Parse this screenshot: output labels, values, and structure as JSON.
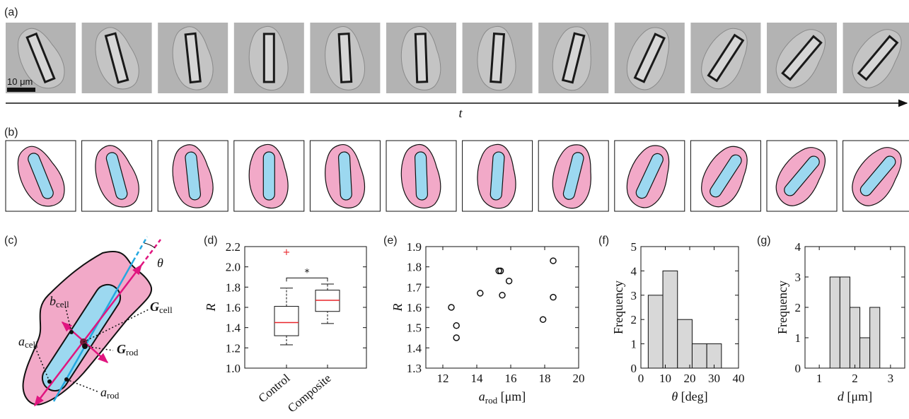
{
  "figure": {
    "panel_labels": [
      "(a)",
      "(b)",
      "(c)",
      "(d)",
      "(e)",
      "(f)",
      "(g)"
    ],
    "scale_bar": "10 μm",
    "time_axis_label": "t",
    "frame_count": 12,
    "diagram_c": {
      "theta": "θ",
      "b_cell": {
        "main": "b",
        "sub": "cell"
      },
      "G_cell": {
        "main": "G",
        "sub": "cell"
      },
      "G_rod": {
        "main": "G",
        "sub": "rod"
      },
      "a_cell": {
        "main": "a",
        "sub": "cell"
      },
      "a_rod": {
        "main": "a",
        "sub": "rod"
      }
    },
    "colors": {
      "cell": "#f2a9c8",
      "rod": "#9cd8f0",
      "magenta": "#e0157f",
      "cyan": "#24a8e0",
      "outlier": "#e8252a",
      "median": "#e8252a",
      "hist_bar": "#d8d8d8"
    }
  },
  "chart_data": [
    {
      "panel": "(d)",
      "type": "box",
      "ylabel": "R",
      "categories": [
        "Control",
        "Composite"
      ],
      "ylim": [
        1.0,
        2.2
      ],
      "yticks": [
        "1.0",
        "1.2",
        "1.4",
        "1.6",
        "1.8",
        "2.0",
        "2.2"
      ],
      "boxes": [
        {
          "name": "Control",
          "whisker_low": 1.23,
          "q1": 1.32,
          "median": 1.45,
          "q3": 1.61,
          "whisker_high": 1.79,
          "outliers": [
            2.15
          ]
        },
        {
          "name": "Composite",
          "whisker_low": 1.44,
          "q1": 1.56,
          "median": 1.67,
          "q3": 1.77,
          "whisker_high": 1.83,
          "outliers": []
        }
      ],
      "significance": "*"
    },
    {
      "panel": "(e)",
      "type": "scatter",
      "xlabel": {
        "main": "a",
        "sub": "rod",
        "unit": "[μm]"
      },
      "ylabel": "R",
      "xlim": [
        11,
        20
      ],
      "ylim": [
        1.3,
        1.9
      ],
      "xticks": [
        "12",
        "14",
        "16",
        "18",
        "20"
      ],
      "yticks": [
        "1.3",
        "1.4",
        "1.5",
        "1.6",
        "1.7",
        "1.8",
        "1.9"
      ],
      "points": [
        {
          "x": 12.5,
          "y": 1.6
        },
        {
          "x": 12.8,
          "y": 1.51
        },
        {
          "x": 12.8,
          "y": 1.45
        },
        {
          "x": 14.2,
          "y": 1.67
        },
        {
          "x": 15.3,
          "y": 1.78
        },
        {
          "x": 15.4,
          "y": 1.78
        },
        {
          "x": 15.5,
          "y": 1.66
        },
        {
          "x": 15.9,
          "y": 1.73
        },
        {
          "x": 17.9,
          "y": 1.54
        },
        {
          "x": 18.5,
          "y": 1.83
        },
        {
          "x": 18.5,
          "y": 1.65
        }
      ]
    },
    {
      "panel": "(f)",
      "type": "bar",
      "xlabel": {
        "sym": "θ",
        "unit": "[deg]"
      },
      "ylabel": "Frequency",
      "xlim": [
        0,
        40
      ],
      "ylim": [
        0,
        5
      ],
      "xticks": [
        "0",
        "10",
        "20",
        "30",
        "40"
      ],
      "yticks": [
        "0",
        "1",
        "2",
        "3",
        "4",
        "5"
      ],
      "bin_edges": [
        3,
        9,
        15,
        21,
        27,
        33
      ],
      "values": [
        3,
        4,
        2,
        1,
        1
      ]
    },
    {
      "panel": "(g)",
      "type": "bar",
      "xlabel": {
        "sym": "d",
        "unit": "[μm]"
      },
      "ylabel": "Frequency",
      "xlim": [
        0.6,
        3.4
      ],
      "ylim": [
        0,
        4
      ],
      "xticks": [
        "1",
        "2",
        "3"
      ],
      "yticks": [
        "0",
        "1",
        "2",
        "3",
        "4"
      ],
      "bin_edges": [
        1.3,
        1.58,
        1.86,
        2.14,
        2.42,
        2.7
      ],
      "values": [
        3,
        3,
        2,
        1,
        2
      ]
    }
  ]
}
